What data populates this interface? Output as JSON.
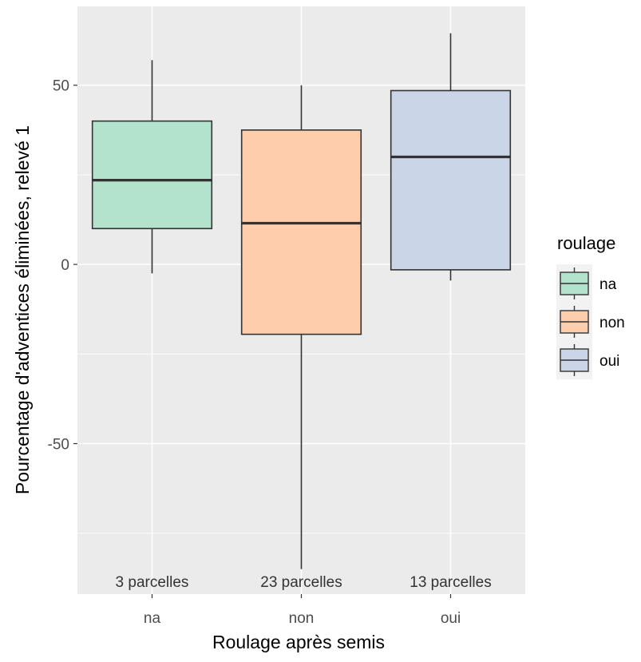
{
  "chart_data": {
    "type": "boxplot",
    "xlabel": "Roulage après semis",
    "ylabel": "Pourcentage d'adventices éliminées, relevé 1",
    "categories": [
      "na",
      "non",
      "oui"
    ],
    "ylim": [
      -92,
      72
    ],
    "yticks": [
      -50,
      0,
      50
    ],
    "grid": true,
    "legend_position": "right",
    "legend_title": "roulage",
    "boxes": [
      {
        "category": "na",
        "min": -2.5,
        "q1": 10,
        "median": 23.5,
        "q3": 40,
        "max": 57,
        "annotation": "3 parcelles",
        "fill": "#b3e2cd"
      },
      {
        "category": "non",
        "min": -85,
        "q1": -19.5,
        "median": 11.5,
        "q3": 37.5,
        "max": 50,
        "annotation": "23 parcelles",
        "fill": "#fdcdac"
      },
      {
        "category": "oui",
        "min": -4.5,
        "q1": -1.5,
        "median": 30,
        "q3": 48.5,
        "max": 64.5,
        "annotation": "13 parcelles",
        "fill": "#cbd5e8"
      }
    ],
    "legend": [
      {
        "label": "na",
        "fill": "#b3e2cd"
      },
      {
        "label": "non",
        "fill": "#fdcdac"
      },
      {
        "label": "oui",
        "fill": "#cbd5e8"
      }
    ]
  },
  "colors": {
    "panel_bg": "#ebebeb",
    "grid": "#ffffff",
    "box_stroke": "#333333",
    "axis_text": "#4d4d4d"
  }
}
